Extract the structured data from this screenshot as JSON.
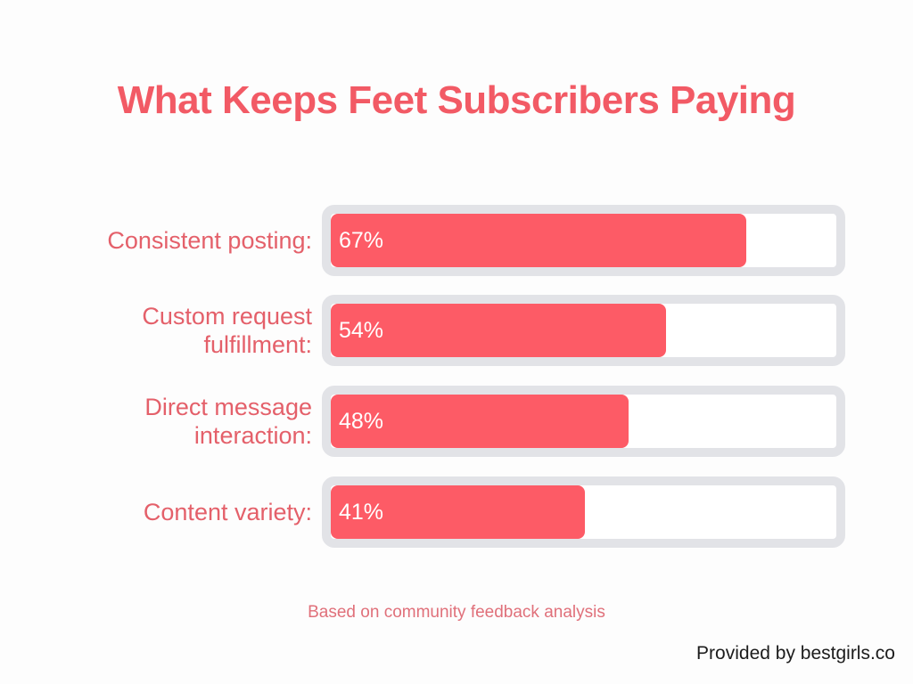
{
  "title": "What Keeps Feet Subscribers Paying",
  "bars": [
    {
      "label": "Consistent posting:",
      "value": 67,
      "value_label": "67%"
    },
    {
      "label": "Custom request\nfulfillment:",
      "value": 54,
      "value_label": "54%"
    },
    {
      "label": "Direct message\ninteraction:",
      "value": 48,
      "value_label": "48%"
    },
    {
      "label": "Content variety:",
      "value": 41,
      "value_label": "41%"
    }
  ],
  "footnote": "Based on community feedback analysis",
  "credit": "Provided by bestgirls.co",
  "colors": {
    "accent": "#fd5b66",
    "track": "#e2e3e7",
    "title": "#f25a65"
  },
  "chart_data": {
    "type": "bar",
    "orientation": "horizontal",
    "title": "What Keeps Feet Subscribers Paying",
    "categories": [
      "Consistent posting",
      "Custom request fulfillment",
      "Direct message interaction",
      "Content variety"
    ],
    "values": [
      67,
      54,
      48,
      41
    ],
    "unit": "%",
    "xlim": [
      0,
      100
    ],
    "xlabel": "",
    "ylabel": "",
    "grid": false,
    "annotations": [
      "Based on community feedback analysis",
      "Provided by bestgirls.co"
    ]
  }
}
